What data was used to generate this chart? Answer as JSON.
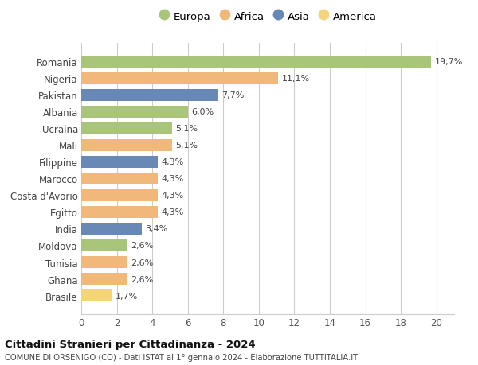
{
  "countries": [
    "Romania",
    "Nigeria",
    "Pakistan",
    "Albania",
    "Ucraina",
    "Mali",
    "Filippine",
    "Marocco",
    "Costa d'Avorio",
    "Egitto",
    "India",
    "Moldova",
    "Tunisia",
    "Ghana",
    "Brasile"
  ],
  "values": [
    19.7,
    11.1,
    7.7,
    6.0,
    5.1,
    5.1,
    4.3,
    4.3,
    4.3,
    4.3,
    3.4,
    2.6,
    2.6,
    2.6,
    1.7
  ],
  "labels": [
    "19,7%",
    "11,1%",
    "7,7%",
    "6,0%",
    "5,1%",
    "5,1%",
    "4,3%",
    "4,3%",
    "4,3%",
    "4,3%",
    "3,4%",
    "2,6%",
    "2,6%",
    "2,6%",
    "1,7%"
  ],
  "continents": [
    "Europa",
    "Africa",
    "Asia",
    "Europa",
    "Europa",
    "Africa",
    "Asia",
    "Africa",
    "Africa",
    "Africa",
    "Asia",
    "Europa",
    "Africa",
    "Africa",
    "America"
  ],
  "colors": {
    "Europa": "#a8c57a",
    "Africa": "#f0b97a",
    "Asia": "#6888b5",
    "America": "#f5d57a"
  },
  "legend_order": [
    "Europa",
    "Africa",
    "Asia",
    "America"
  ],
  "xlim": [
    0,
    21
  ],
  "xticks": [
    0,
    2,
    4,
    6,
    8,
    10,
    12,
    14,
    16,
    18,
    20
  ],
  "title": "Cittadini Stranieri per Cittadinanza - 2024",
  "subtitle": "COMUNE DI ORSENIGO (CO) - Dati ISTAT al 1° gennaio 2024 - Elaborazione TUTTITALIA.IT",
  "bg_color": "#ffffff",
  "grid_color": "#cccccc",
  "bar_height": 0.72,
  "label_fontsize": 8.0,
  "ytick_fontsize": 8.5,
  "xtick_fontsize": 8.5
}
